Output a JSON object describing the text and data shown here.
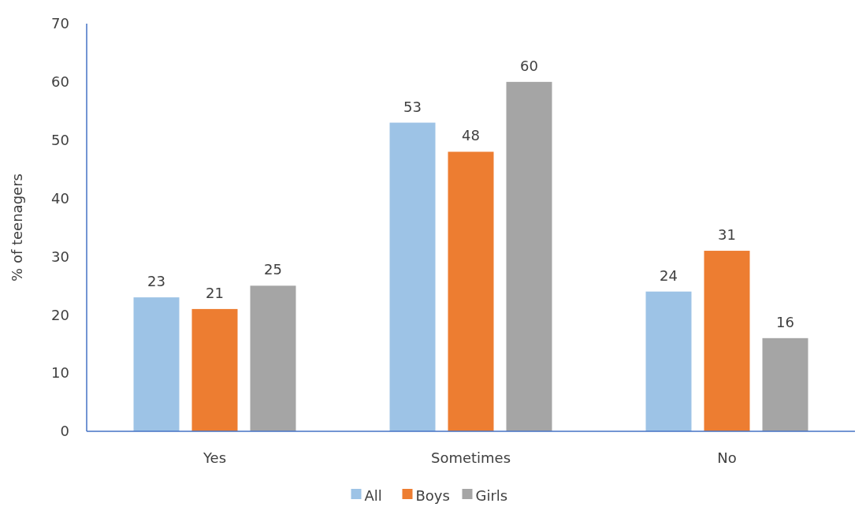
{
  "chart_data": {
    "type": "bar",
    "ylabel": "% of teenagers",
    "categories": [
      "Yes",
      "Sometimes",
      "No"
    ],
    "series": [
      {
        "name": "All",
        "color": "#9dc3e6",
        "values": [
          23,
          53,
          24
        ]
      },
      {
        "name": "Boys",
        "color": "#ed7d31",
        "values": [
          21,
          48,
          31
        ]
      },
      {
        "name": "Girls",
        "color": "#a5a5a5",
        "values": [
          25,
          60,
          16
        ]
      }
    ],
    "ylim": [
      0,
      70
    ],
    "yticks": [
      0,
      10,
      20,
      30,
      40,
      50,
      60,
      70
    ],
    "data_labels": true,
    "legend": "bottom",
    "grid": false
  }
}
